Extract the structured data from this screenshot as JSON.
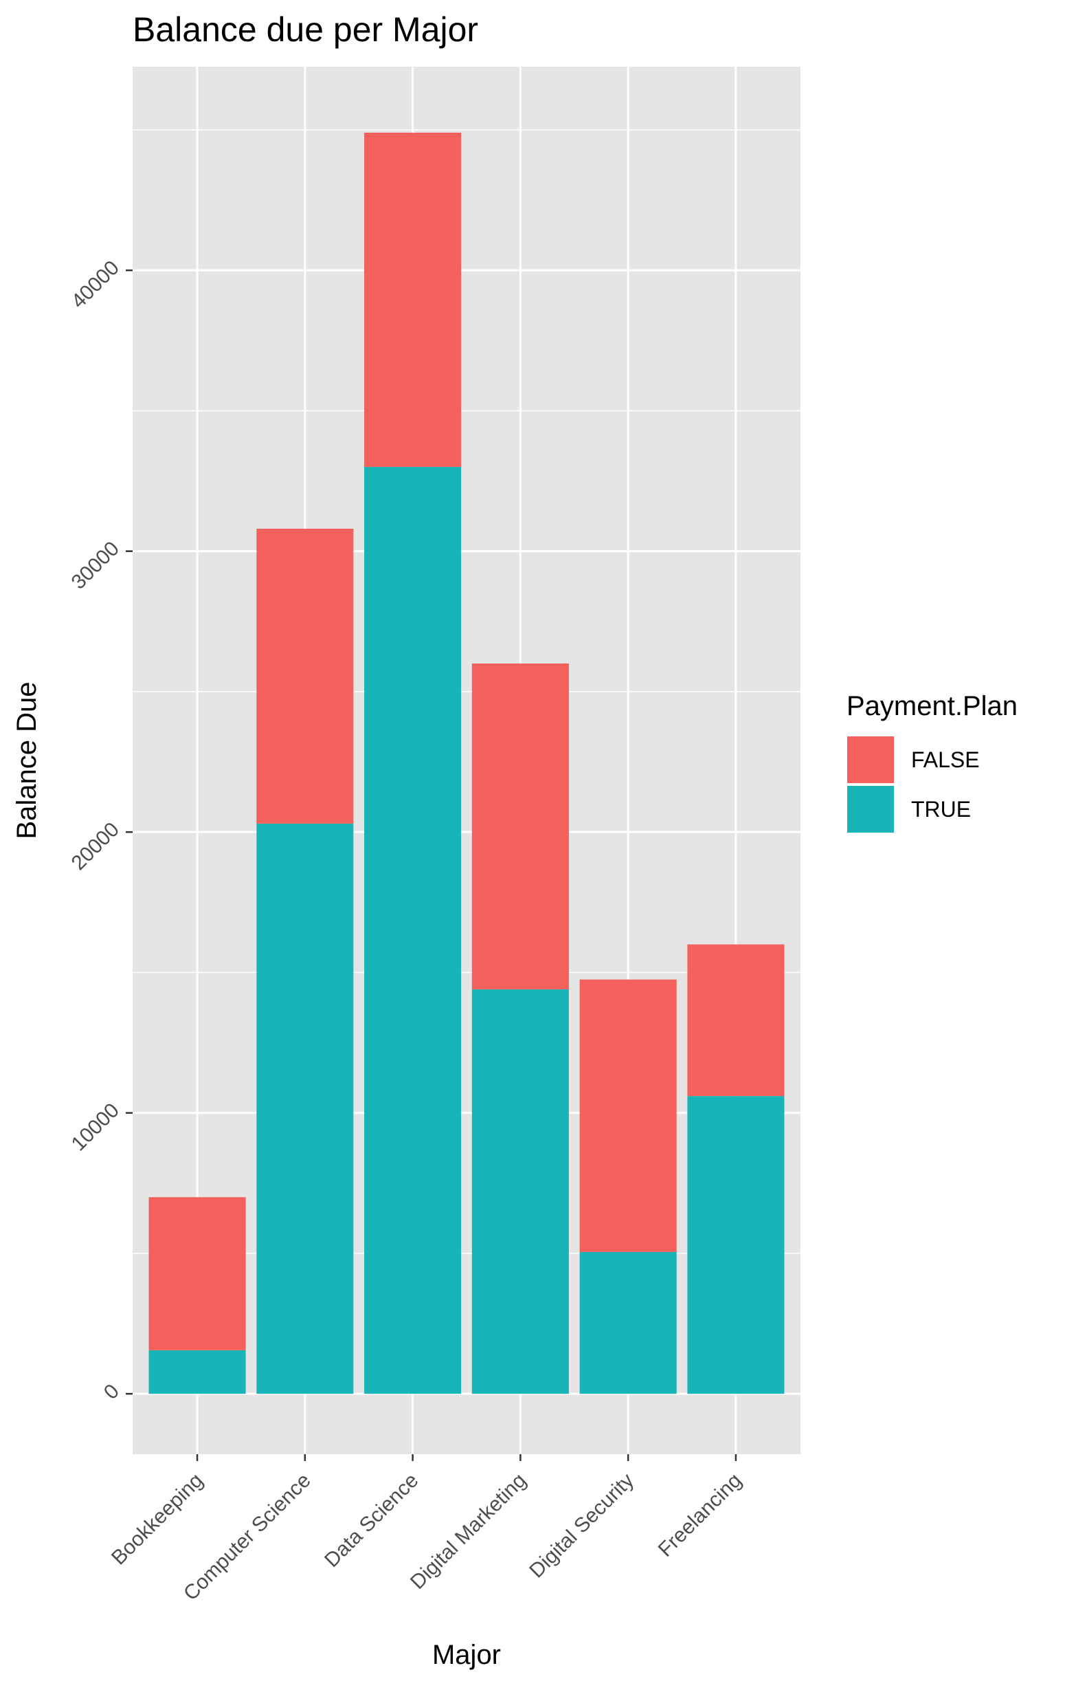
{
  "chart_data": {
    "type": "bar",
    "stacked": true,
    "title": "Balance due per Major",
    "xlabel": "Major",
    "ylabel": "Balance Due",
    "categories": [
      "Bookkeeping",
      "Computer Science",
      "Data Science",
      "Digital Marketing",
      "Digital Security",
      "Freelancing"
    ],
    "series": [
      {
        "name": "TRUE",
        "color": "#19b4b8",
        "values": [
          1550,
          20300,
          33000,
          14400,
          5050,
          10600
        ]
      },
      {
        "name": "FALSE",
        "color": "#f4605c",
        "values": [
          5450,
          10500,
          11900,
          11600,
          9700,
          5400
        ]
      }
    ],
    "y_ticks": [
      0,
      10000,
      20000,
      30000,
      40000
    ],
    "y_tick_labels": [
      "0",
      "10000",
      "20000",
      "30000",
      "40000"
    ],
    "ylim": [
      -2150,
      47250
    ],
    "grid": true,
    "legend": {
      "title": "Payment.Plan",
      "position": "right",
      "entries": [
        {
          "label": "FALSE",
          "color": "#f4605c"
        },
        {
          "label": "TRUE",
          "color": "#19b4b8"
        }
      ]
    },
    "panel_background": "#e5e5e5",
    "grid_color": "#ffffff"
  }
}
